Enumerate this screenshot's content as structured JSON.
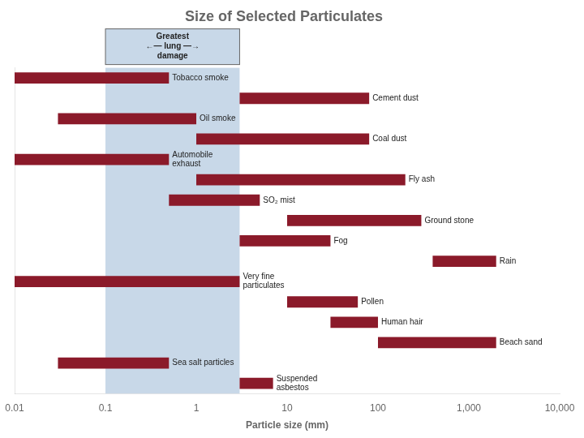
{
  "chart_data": {
    "type": "bar",
    "orientation": "horizontal",
    "title": "Size of Selected Particulates",
    "xlabel": "Particle size (mm)",
    "categories": [
      "Tobacco smoke",
      "Cement dust",
      "Oil smoke",
      "Coal dust",
      "Automobile\nexhaust",
      "Fly ash",
      "SO₂ mist",
      "Ground stone",
      "Fog",
      "Rain",
      "Very fine\nparticulates",
      "Pollen",
      "Human hair",
      "Beach sand",
      "Sea salt particles",
      "Suspended\nasbestos"
    ],
    "values": [
      [
        0.01,
        0.5
      ],
      [
        3.0,
        80.0
      ],
      [
        0.03,
        1.0
      ],
      [
        1.0,
        80.0
      ],
      [
        0.01,
        0.5
      ],
      [
        1.0,
        200.0
      ],
      [
        0.5,
        5.0
      ],
      [
        10.0,
        300.0
      ],
      [
        3.0,
        30.0
      ],
      [
        400.0,
        2000.0
      ],
      [
        0.01,
        3.0
      ],
      [
        10.0,
        60.0
      ],
      [
        30.0,
        100.0
      ],
      [
        100.0,
        2000.0
      ],
      [
        0.03,
        0.5
      ],
      [
        3.0,
        7.0
      ]
    ],
    "color": "#8B1A2A",
    "log": "x",
    "xlim": [
      0.01,
      10000
    ],
    "xticks": [
      0.01,
      0.1,
      1,
      10,
      100,
      {
        "value": 1000,
        "label": "1,000"
      },
      {
        "value": 10000,
        "label": "10,000"
      }
    ],
    "grid": false,
    "tick_labels": "x",
    "annotations": [
      {
        "text": [
          "Greatest",
          "←— lung —→",
          "damage"
        ],
        "xlim": [
          0.1,
          3
        ],
        "color": "#C8D8E8"
      }
    ]
  }
}
